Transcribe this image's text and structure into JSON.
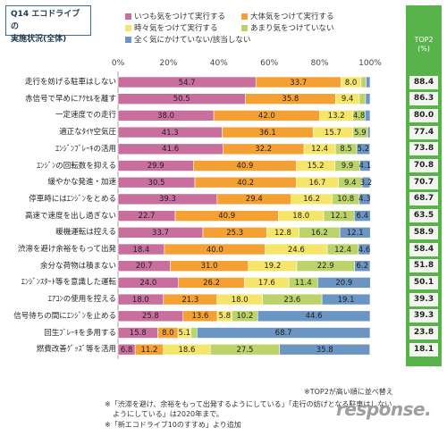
{
  "title_lines": [
    "Q14 エコドライブの",
    "実施状況(全体)"
  ],
  "top2_header": "TOP2\n(%)",
  "footnotes": [
    "※TOP2が高い順に並べ替え",
    "※「渋滞を避け、余裕をもって出発するようにしている」「走行の妨げとなる駐車はしない",
    "ようにしている」は2020年まで。",
    "※「新エコドライブ10のすすめ」より追加"
  ],
  "logo_text": "response.",
  "chart_data": {
    "type": "bar",
    "orientation": "horizontal",
    "stacked": true,
    "xlim": [
      0,
      100
    ],
    "ticks": [
      "0%",
      "20%",
      "40%",
      "60%",
      "80%",
      "100%"
    ],
    "legend_position": "top",
    "series": [
      {
        "name": "いつも気をつけて実行する",
        "color": "#c86f9e"
      },
      {
        "name": "大体気をつけて実行する",
        "color": "#f5a033"
      },
      {
        "name": "時々気をつけて実行する",
        "color": "#f5e56b"
      },
      {
        "name": "あまり気をつけていない",
        "color": "#bcd36a"
      },
      {
        "name": "全く気にかけていない/該当しない",
        "color": "#6b96c3"
      }
    ],
    "categories": [
      "走行を妨げる駐車はしない",
      "赤信号で早めにｱｸｾﾙを離す",
      "一定速度での走行",
      "適正なﾀｲﾔ空気圧",
      "ｴﾝｼﾞﾝﾌﾞﾚｰｷの活用",
      "ｴﾝｼﾞﾝの回転数を抑える",
      "緩やかな発進・加速",
      "停車時にはｴﾝｼﾞﾝをとめる",
      "高速で速度を出し過ぎない",
      "暖機運転は控える",
      "渋滞を避け余裕をもって出発",
      "余分な荷物は積まない",
      "ｴﾝｼﾞﾝｽﾀｰﾄ等を意識した運転",
      "ｴｱｺﾝの使用を控える",
      "信号待ちの間にｴﾝｼﾞﾝを止める",
      "回生ﾌﾞﾚｰｷを多用する",
      "燃費改善ｸﾞｯｽﾞ等を活用"
    ],
    "values": [
      [
        54.7,
        33.7,
        8.0,
        2.0,
        1.6
      ],
      [
        50.5,
        35.8,
        9.4,
        2.5,
        1.8
      ],
      [
        38.0,
        42.0,
        13.2,
        4.8,
        2.0
      ],
      [
        41.3,
        36.1,
        15.7,
        5.9,
        1.0
      ],
      [
        41.6,
        32.2,
        12.4,
        8.5,
        5.2
      ],
      [
        29.9,
        40.9,
        15.2,
        9.9,
        4.1
      ],
      [
        30.5,
        40.2,
        16.7,
        9.4,
        3.2
      ],
      [
        39.3,
        29.4,
        16.2,
        10.8,
        4.3
      ],
      [
        22.7,
        40.9,
        18.0,
        12.1,
        6.4
      ],
      [
        33.7,
        25.3,
        12.8,
        16.2,
        12.1
      ],
      [
        18.4,
        40.0,
        24.6,
        12.4,
        4.6
      ],
      [
        20.7,
        31.0,
        19.2,
        22.9,
        6.2
      ],
      [
        24.0,
        26.2,
        17.6,
        11.4,
        20.9
      ],
      [
        18.0,
        21.3,
        18.0,
        23.6,
        19.1
      ],
      [
        25.8,
        13.6,
        5.8,
        10.2,
        44.6
      ],
      [
        15.8,
        8.0,
        5.1,
        2.4,
        68.7
      ],
      [
        6.8,
        11.2,
        18.6,
        27.5,
        35.8
      ]
    ],
    "value_labels": [
      [
        "54.7",
        "33.7",
        "8.0",
        "",
        ""
      ],
      [
        "50.5",
        "35.8",
        "9.4",
        "",
        ""
      ],
      [
        "38.0",
        "42.0",
        "13.2",
        "4.8",
        ""
      ],
      [
        "41.3",
        "36.1",
        "15.7",
        "5.9",
        ""
      ],
      [
        "41.6",
        "32.2",
        "12.4",
        "8.5",
        "5.2"
      ],
      [
        "29.9",
        "40.9",
        "15.2",
        "9.9",
        "4.1"
      ],
      [
        "30.5",
        "40.2",
        "16.7",
        "9.4",
        "3.2"
      ],
      [
        "39.3",
        "29.4",
        "16.2",
        "10.8",
        "4.3"
      ],
      [
        "22.7",
        "40.9",
        "18.0",
        "12.1",
        "6.4"
      ],
      [
        "33.7",
        "25.3",
        "12.8",
        "16.2",
        "12.1"
      ],
      [
        "18.4",
        "40.0",
        "24.6",
        "12.4",
        "4.6"
      ],
      [
        "20.7",
        "31.0",
        "19.2",
        "22.9",
        "6.2"
      ],
      [
        "24.0",
        "26.2",
        "17.6",
        "11.4",
        "20.9"
      ],
      [
        "18.0",
        "21.3",
        "18.0",
        "23.6",
        "19.1"
      ],
      [
        "25.8",
        "13.6",
        "5.8",
        "10.2",
        "44.6"
      ],
      [
        "15.8",
        "8.0",
        "5.1",
        "",
        "68.7"
      ],
      [
        "6.8",
        "11.2",
        "18.6",
        "27.5",
        "35.8"
      ]
    ],
    "top2": [
      "88.4",
      "86.3",
      "80.0",
      "77.4",
      "73.8",
      "70.8",
      "70.7",
      "68.7",
      "63.5",
      "58.9",
      "58.4",
      "51.8",
      "50.1",
      "39.3",
      "39.3",
      "23.8",
      "18.1"
    ]
  }
}
